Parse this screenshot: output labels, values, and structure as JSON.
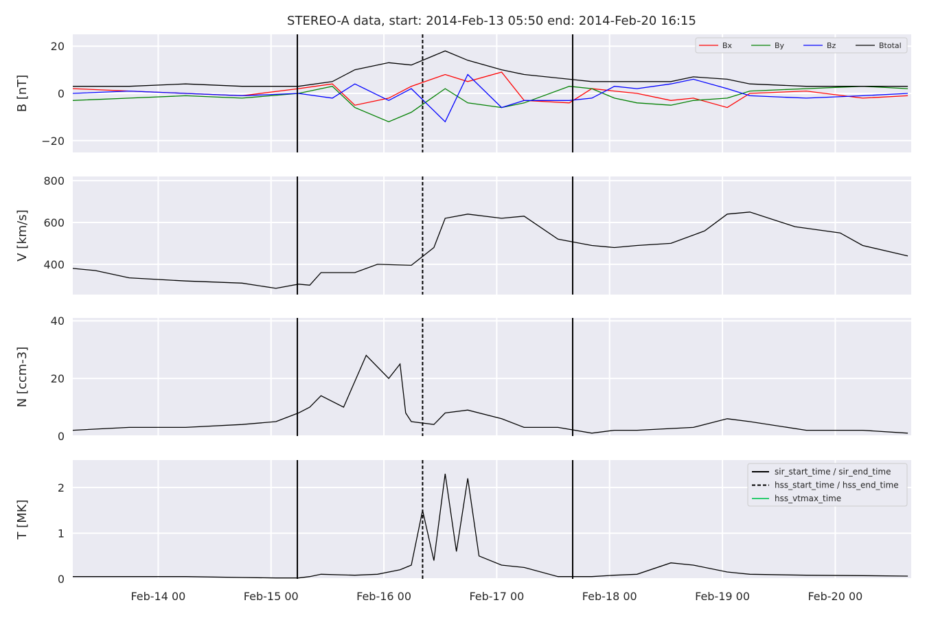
{
  "title": "STEREO-A data, start: 2014-Feb-13 05:50  end: 2014-Feb-20 16:15",
  "chart_data": [
    {
      "type": "line",
      "ylabel": "B [nT]",
      "ylim": [
        -25,
        25
      ],
      "yticks": [
        {
          "value": -20,
          "label": "−20"
        },
        {
          "value": 0,
          "label": "0"
        },
        {
          "value": 20,
          "label": "20"
        }
      ],
      "legend": "top-right",
      "series": [
        {
          "name": "Bx",
          "color": "#ff0000",
          "x": [
            0,
            0.5,
            1,
            1.5,
            2,
            2.3,
            2.5,
            2.8,
            3,
            3.3,
            3.5,
            3.8,
            4,
            4.4,
            4.6,
            4.8,
            5,
            5.3,
            5.5,
            5.8,
            6,
            6.5,
            7,
            7.4
          ],
          "y": [
            2,
            1,
            0,
            -1,
            2,
            4,
            -5,
            -2,
            3,
            8,
            5,
            9,
            -3,
            -4,
            2,
            1,
            0,
            -3,
            -2,
            -6,
            0,
            1,
            -2,
            -1
          ]
        },
        {
          "name": "By",
          "color": "#008000",
          "x": [
            0,
            0.5,
            1,
            1.5,
            2,
            2.3,
            2.5,
            2.8,
            3,
            3.3,
            3.5,
            3.8,
            4,
            4.4,
            4.6,
            4.8,
            5,
            5.3,
            5.5,
            5.8,
            6,
            6.5,
            7,
            7.4
          ],
          "y": [
            -3,
            -2,
            -1,
            -2,
            0,
            3,
            -6,
            -12,
            -8,
            2,
            -4,
            -6,
            -4,
            3,
            2,
            -2,
            -4,
            -5,
            -3,
            -2,
            1,
            2,
            3,
            2
          ]
        },
        {
          "name": "Bz",
          "color": "#0000ff",
          "x": [
            0,
            0.5,
            1,
            1.5,
            2,
            2.3,
            2.5,
            2.8,
            3,
            3.3,
            3.5,
            3.8,
            4,
            4.4,
            4.6,
            4.8,
            5,
            5.3,
            5.5,
            5.8,
            6,
            6.5,
            7,
            7.4
          ],
          "y": [
            0,
            1,
            0,
            -1,
            0,
            -2,
            4,
            -3,
            2,
            -12,
            8,
            -6,
            -3,
            -3,
            -2,
            3,
            2,
            4,
            6,
            2,
            -1,
            -2,
            -1,
            0
          ]
        },
        {
          "name": "Btotal",
          "color": "#000000",
          "x": [
            0,
            0.5,
            1,
            1.5,
            2,
            2.3,
            2.5,
            2.8,
            3,
            3.3,
            3.5,
            3.8,
            4,
            4.4,
            4.6,
            4.8,
            5,
            5.3,
            5.5,
            5.8,
            6,
            6.5,
            7,
            7.4
          ],
          "y": [
            3,
            3,
            4,
            3,
            3,
            5,
            10,
            13,
            12,
            18,
            14,
            10,
            8,
            6,
            5,
            5,
            5,
            5,
            7,
            6,
            4,
            3,
            3,
            3
          ]
        }
      ]
    },
    {
      "type": "line",
      "ylabel": "V [km/s]",
      "ylim": [
        255,
        820
      ],
      "yticks": [
        {
          "value": 400,
          "label": "400"
        },
        {
          "value": 600,
          "label": "600"
        },
        {
          "value": 800,
          "label": "800"
        }
      ],
      "series": [
        {
          "name": "",
          "color": "#000000",
          "x": [
            0,
            0.2,
            0.5,
            1,
            1.5,
            1.8,
            2,
            2.1,
            2.2,
            2.5,
            2.7,
            3,
            3.2,
            3.3,
            3.5,
            3.8,
            4,
            4.3,
            4.6,
            4.8,
            5,
            5.3,
            5.6,
            5.8,
            6,
            6.4,
            6.8,
            7,
            7.4
          ],
          "y": [
            380,
            370,
            335,
            320,
            310,
            285,
            305,
            300,
            360,
            360,
            400,
            395,
            480,
            620,
            640,
            620,
            630,
            520,
            490,
            480,
            490,
            500,
            560,
            640,
            650,
            580,
            550,
            490,
            440
          ]
        }
      ]
    },
    {
      "type": "line",
      "ylabel": "N [ccm-3]",
      "ylim": [
        0,
        41
      ],
      "yticks": [
        {
          "value": 0,
          "label": "0"
        },
        {
          "value": 20,
          "label": "20"
        },
        {
          "value": 40,
          "label": "40"
        }
      ],
      "series": [
        {
          "name": "",
          "color": "#000000",
          "x": [
            0,
            0.5,
            1,
            1.5,
            1.8,
            2,
            2.1,
            2.2,
            2.4,
            2.6,
            2.8,
            2.9,
            2.95,
            3,
            3.2,
            3.3,
            3.5,
            3.8,
            4,
            4.3,
            4.6,
            4.8,
            5,
            5.5,
            5.8,
            6,
            6.5,
            7,
            7.4
          ],
          "y": [
            2,
            3,
            3,
            4,
            5,
            8,
            10,
            14,
            10,
            28,
            20,
            25,
            8,
            5,
            4,
            8,
            9,
            6,
            3,
            3,
            1,
            2,
            2,
            3,
            6,
            5,
            2,
            2,
            1
          ]
        }
      ]
    },
    {
      "type": "line",
      "ylabel": "T [MK]",
      "ylim": [
        0,
        2.6
      ],
      "yticks": [
        {
          "value": 0,
          "label": "0"
        },
        {
          "value": 1,
          "label": "1"
        },
        {
          "value": 2,
          "label": "2"
        }
      ],
      "legend": "top-right",
      "series": [
        {
          "name": "",
          "color": "#000000",
          "x": [
            0,
            0.5,
            1,
            1.5,
            1.8,
            2,
            2.1,
            2.2,
            2.5,
            2.7,
            2.9,
            3,
            3.1,
            3.2,
            3.3,
            3.4,
            3.5,
            3.6,
            3.8,
            4,
            4.3,
            4.6,
            4.8,
            5,
            5.3,
            5.5,
            5.8,
            6,
            6.5,
            7,
            7.4
          ],
          "y": [
            0.05,
            0.05,
            0.05,
            0.03,
            0.02,
            0.02,
            0.05,
            0.1,
            0.08,
            0.1,
            0.2,
            0.3,
            1.5,
            0.4,
            2.3,
            0.6,
            2.2,
            0.5,
            0.3,
            0.25,
            0.05,
            0.05,
            0.08,
            0.1,
            0.35,
            0.3,
            0.15,
            0.1,
            0.08,
            0.07,
            0.06
          ]
        }
      ]
    }
  ],
  "x_axis": {
    "xlim": [
      0,
      7.43
    ],
    "ticks": [
      {
        "value": 0.757,
        "label": "Feb-14 00"
      },
      {
        "value": 1.757,
        "label": "Feb-15 00"
      },
      {
        "value": 2.757,
        "label": "Feb-16 00"
      },
      {
        "value": 3.757,
        "label": "Feb-17 00"
      },
      {
        "value": 4.757,
        "label": "Feb-18 00"
      },
      {
        "value": 5.757,
        "label": "Feb-19 00"
      },
      {
        "value": 6.757,
        "label": "Feb-20 00"
      }
    ]
  },
  "event_lines": [
    {
      "name": "sir_start_time / sir_end_time",
      "style": "solid",
      "color": "#000000",
      "x": [
        1.99,
        4.43
      ]
    },
    {
      "name": "hss_start_time / hss_end_time",
      "style": "dashed",
      "color": "#000000",
      "x": [
        3.1
      ]
    },
    {
      "name": "hss_vtmax_time",
      "style": "solid",
      "color": "#2ecc71",
      "x": []
    }
  ]
}
